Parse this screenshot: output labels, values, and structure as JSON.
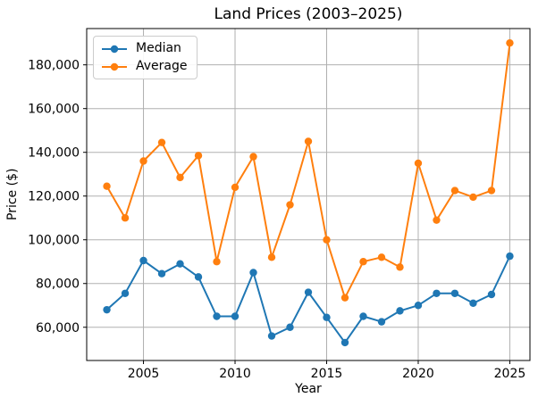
{
  "chart_data": {
    "type": "line",
    "title": "Land Prices (2003–2025)",
    "xlabel": "Year",
    "ylabel": "Price ($)",
    "grid": true,
    "legend_position": "upper-left",
    "background_color": "#ffffff",
    "grid_color": "#b0b0b0",
    "spine_color": "#000000",
    "xlim": [
      2001.9,
      2026.1
    ],
    "ylim": [
      44800,
      196600
    ],
    "xticks": [
      2005,
      2010,
      2015,
      2020,
      2025
    ],
    "yticks": [
      60000,
      80000,
      100000,
      120000,
      140000,
      160000,
      180000
    ],
    "x": [
      2003,
      2004,
      2005,
      2006,
      2007,
      2008,
      2009,
      2010,
      2011,
      2012,
      2013,
      2014,
      2015,
      2016,
      2017,
      2018,
      2019,
      2020,
      2021,
      2022,
      2023,
      2024,
      2025
    ],
    "series": [
      {
        "name": "Median",
        "color": "#1f77b4",
        "values": [
          68000,
          75500,
          90500,
          84500,
          89000,
          83000,
          65000,
          65000,
          85000,
          56000,
          60000,
          76000,
          64500,
          53000,
          65000,
          62500,
          67500,
          70000,
          75500,
          75500,
          71000,
          75000,
          92500
        ]
      },
      {
        "name": "Average",
        "color": "#ff7f0e",
        "values": [
          124500,
          110000,
          136000,
          144500,
          128500,
          138500,
          90000,
          124000,
          138000,
          92000,
          116000,
          145000,
          100000,
          73500,
          90000,
          92000,
          87500,
          135000,
          109000,
          122500,
          119500,
          122500,
          190000
        ]
      }
    ]
  }
}
